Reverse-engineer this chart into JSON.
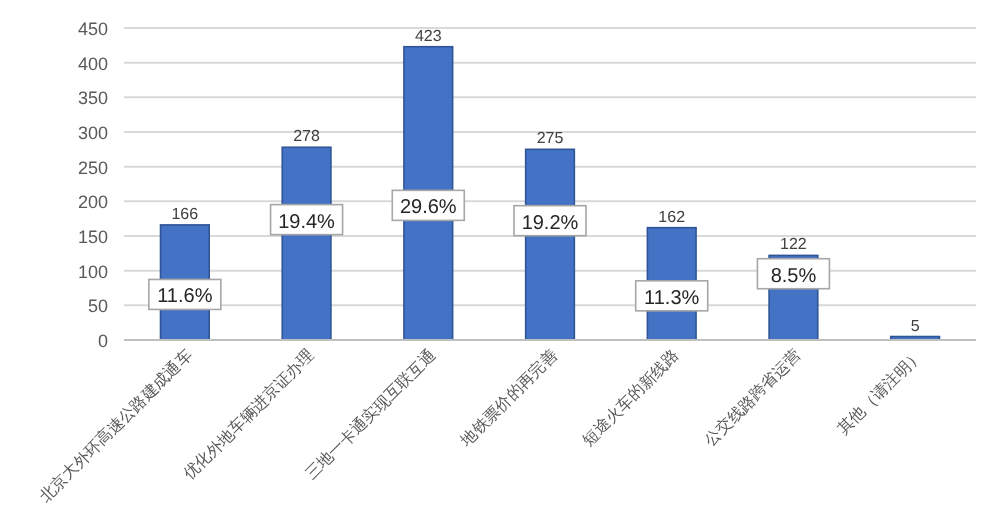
{
  "chart_data": {
    "type": "bar",
    "categories": [
      "北京大外环高速公路建成通车",
      "优化外地车辆进京证办理",
      "三地一卡通实现互联互通",
      "地铁票价的再完善",
      "短途火车的新线路",
      "公交线路跨省运营",
      "其他（请注明）"
    ],
    "values": [
      166,
      278,
      423,
      275,
      162,
      122,
      5
    ],
    "color": "#4472c4",
    "ylim": [
      0,
      450
    ],
    "yticks": [
      0,
      50,
      100,
      150,
      200,
      250,
      300,
      350,
      400,
      450
    ],
    "grid": "y",
    "data_labels": true,
    "annotations": [
      "11.6%",
      "19.4%",
      "29.6%",
      "19.2%",
      "11.3%",
      "8.5%"
    ]
  }
}
